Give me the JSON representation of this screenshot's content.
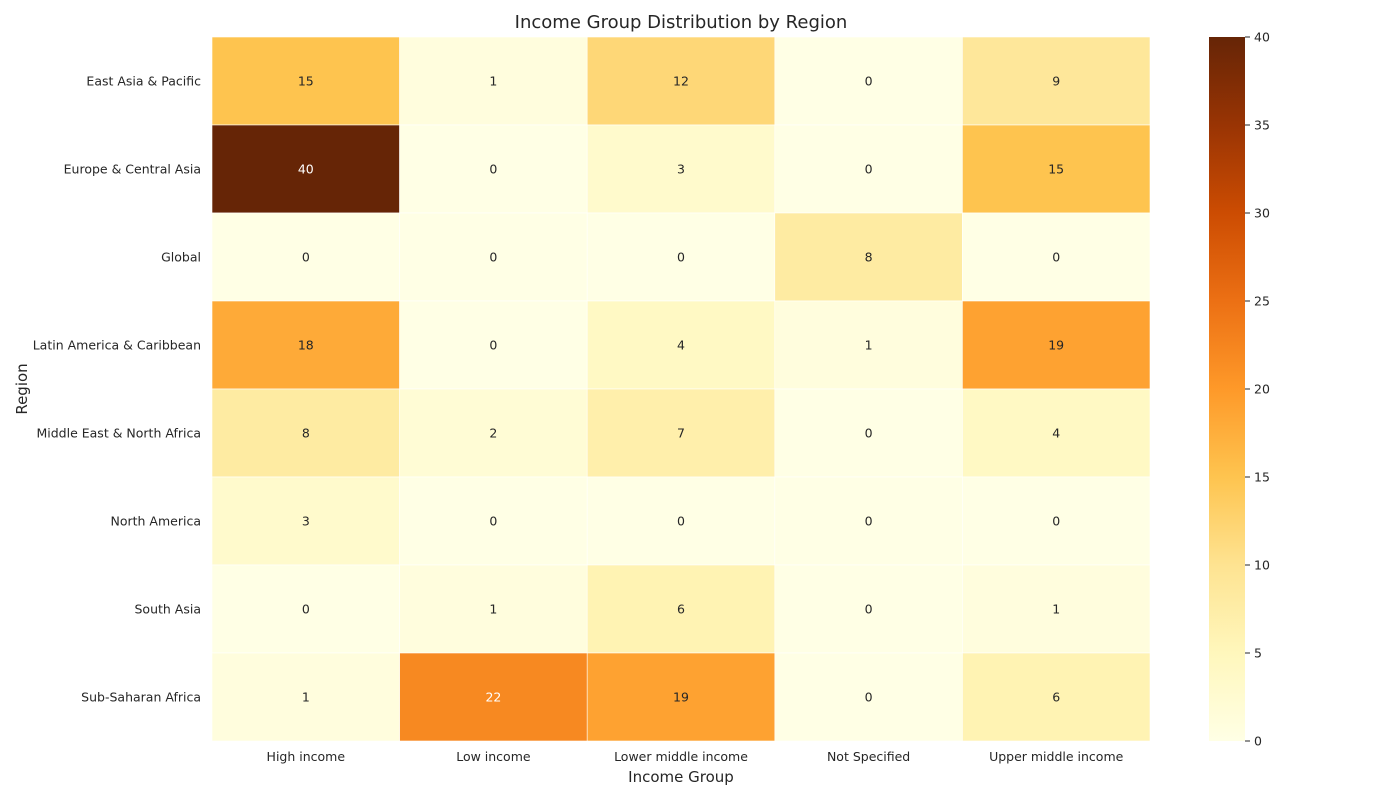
{
  "chart_data": {
    "type": "heatmap",
    "title": "Income Group Distribution by Region",
    "xlabel": "Income Group",
    "ylabel": "Region",
    "x_categories": [
      "High income",
      "Low income",
      "Lower middle income",
      "Not Specified",
      "Upper middle income"
    ],
    "y_categories": [
      "East Asia & Pacific",
      "Europe & Central Asia",
      "Global",
      "Latin America & Caribbean",
      "Middle East & North Africa",
      "North America",
      "South Asia",
      "Sub-Saharan Africa"
    ],
    "values": [
      [
        15,
        1,
        12,
        0,
        9
      ],
      [
        40,
        0,
        3,
        0,
        15
      ],
      [
        0,
        0,
        0,
        8,
        0
      ],
      [
        18,
        0,
        4,
        1,
        19
      ],
      [
        8,
        2,
        7,
        0,
        4
      ],
      [
        3,
        0,
        0,
        0,
        0
      ],
      [
        0,
        1,
        6,
        0,
        1
      ],
      [
        1,
        22,
        19,
        0,
        6
      ]
    ],
    "colorscale": "YlOrBr",
    "colorbar": {
      "min": 0,
      "max": 40,
      "ticks": [
        0,
        5,
        10,
        15,
        20,
        25,
        30,
        35,
        40
      ]
    },
    "annotations": "cell values shown"
  }
}
